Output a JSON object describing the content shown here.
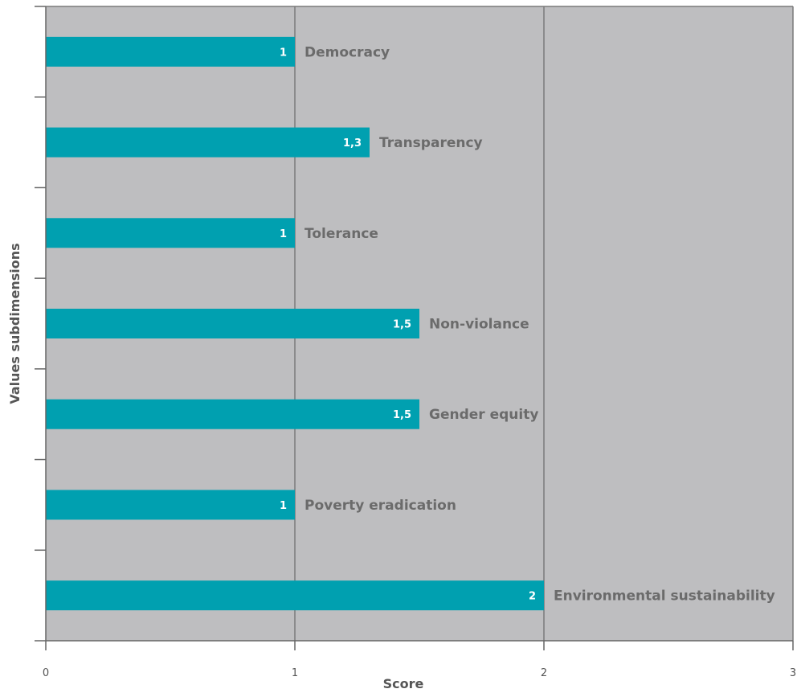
{
  "chart_data": {
    "type": "bar",
    "orientation": "horizontal",
    "categories": [
      "Democracy",
      "Transparency",
      "Tolerance",
      "Non-violance",
      "Gender equity",
      "Poverty eradication",
      "Environmental sustainability"
    ],
    "values": [
      1,
      1.3,
      1,
      1.5,
      1.5,
      1,
      2
    ],
    "value_labels": [
      "1",
      "1,3",
      "1",
      "1,5",
      "1,5",
      "1",
      "2"
    ],
    "xlabel": "Score",
    "ylabel": "Values subdimensions",
    "xlim": [
      0,
      3
    ],
    "x_ticks": [
      0,
      1,
      2,
      3
    ],
    "x_tick_labels": [
      "0",
      "1",
      "2",
      "3"
    ],
    "grid": true,
    "colors": {
      "bar": "#00a0b0",
      "plot_bg": "#bebec0",
      "grid": "#7a7a7a",
      "axis": "#666666"
    }
  }
}
